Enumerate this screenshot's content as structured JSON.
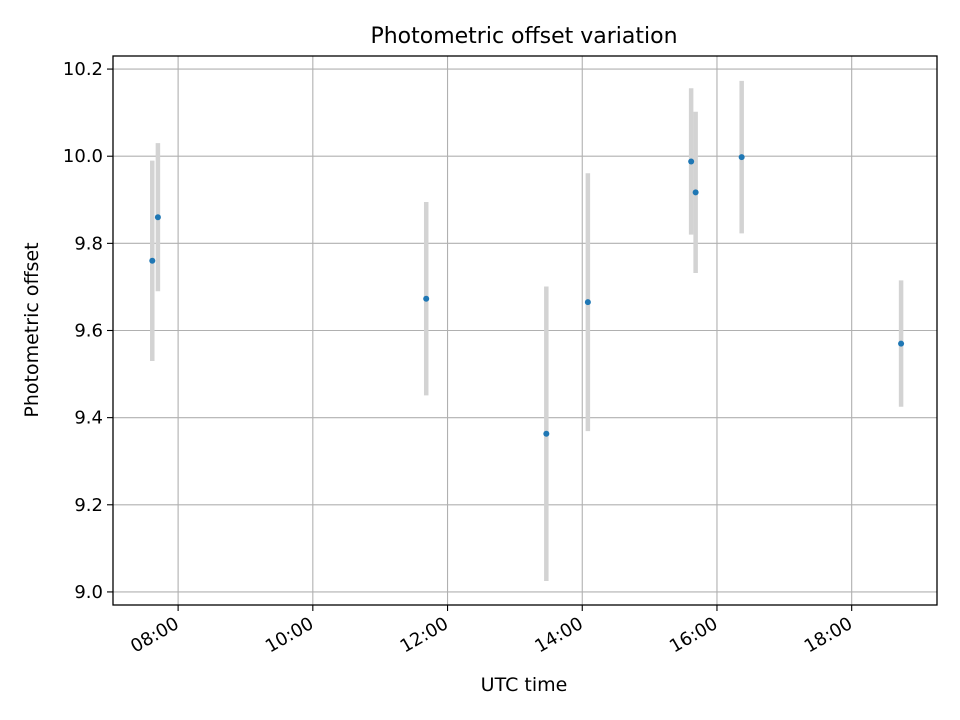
{
  "chart_data": {
    "type": "scatter",
    "title": "Photometric offset variation",
    "xlabel": "UTC time",
    "ylabel": "Photometric offset",
    "x_is_time": true,
    "xlim": [
      "07:02",
      "19:16"
    ],
    "ylim": [
      8.97,
      10.23
    ],
    "xticks": [
      "08:00",
      "10:00",
      "12:00",
      "14:00",
      "16:00",
      "18:00"
    ],
    "yticks": [
      "9.0",
      "9.2",
      "9.4",
      "9.6",
      "9.8",
      "10.0",
      "10.2"
    ],
    "grid": true,
    "colors": {
      "point": "#1f77b4",
      "errorbar": "#d3d3d3",
      "grid": "#b0b0b0",
      "axes": "#000000"
    },
    "points": [
      {
        "x": "07:37",
        "y": 9.76,
        "yerr": 0.23
      },
      {
        "x": "07:42",
        "y": 9.86,
        "yerr": 0.17
      },
      {
        "x": "11:41",
        "y": 9.673,
        "yerr": 0.222
      },
      {
        "x": "13:28",
        "y": 9.363,
        "yerr": 0.338
      },
      {
        "x": "14:05",
        "y": 9.665,
        "yerr": 0.296
      },
      {
        "x": "15:37",
        "y": 9.988,
        "yerr": 0.168
      },
      {
        "x": "15:41",
        "y": 9.917,
        "yerr": 0.185
      },
      {
        "x": "16:22",
        "y": 9.998,
        "yerr": 0.175
      },
      {
        "x": "18:44",
        "y": 9.57,
        "yerr": 0.145
      }
    ]
  }
}
